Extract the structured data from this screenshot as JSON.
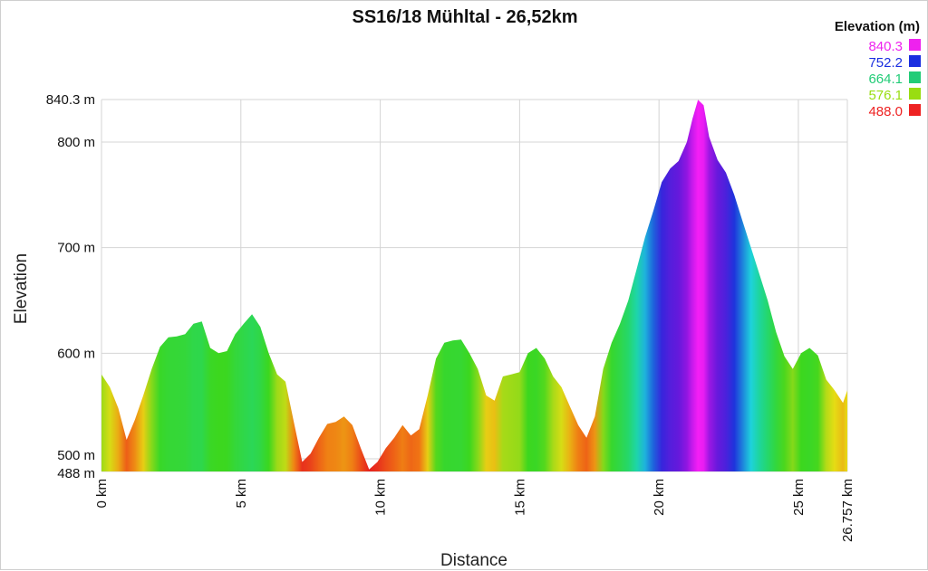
{
  "chart_data": {
    "type": "area",
    "title": "SS16/18 Mühltal - 26,52km",
    "xlabel": "Distance",
    "ylabel": "Elevation",
    "xlim": [
      0,
      26.757
    ],
    "ylim": [
      488,
      840.3
    ],
    "grid": true,
    "x_ticks": [
      {
        "value": 0,
        "label": "0 km"
      },
      {
        "value": 5,
        "label": "5 km"
      },
      {
        "value": 10,
        "label": "10 km"
      },
      {
        "value": 15,
        "label": "15 km"
      },
      {
        "value": 20,
        "label": "20 km"
      },
      {
        "value": 25,
        "label": "25 km"
      },
      {
        "value": 26.757,
        "label": "26.757 km"
      }
    ],
    "y_ticks": [
      {
        "value": 488,
        "label": "488 m"
      },
      {
        "value": 500,
        "label": "500 m"
      },
      {
        "value": 600,
        "label": "600 m"
      },
      {
        "value": 700,
        "label": "700 m"
      },
      {
        "value": 800,
        "label": "800 m"
      },
      {
        "value": 840.3,
        "label": "840.3 m"
      }
    ],
    "legend": {
      "title": "Elevation (m)",
      "position": "top-right",
      "entries": [
        {
          "label": "840.3",
          "color": "#ee22ee"
        },
        {
          "label": "752.2",
          "color": "#1a2ee0"
        },
        {
          "label": "664.1",
          "color": "#22cc77"
        },
        {
          "label": "576.1",
          "color": "#99dd11"
        },
        {
          "label": "488.0",
          "color": "#ee2222"
        }
      ]
    },
    "series": [
      {
        "x": [
          0,
          0.3,
          0.6,
          0.9,
          1.2,
          1.5,
          1.8,
          2.1,
          2.4,
          2.7,
          3.0,
          3.3,
          3.6,
          3.9,
          4.2,
          4.5,
          4.8,
          5.1,
          5.4,
          5.7,
          6.0,
          6.3,
          6.6,
          6.9,
          7.2,
          7.5,
          7.8,
          8.1,
          8.4,
          8.7,
          9.0,
          9.3,
          9.6,
          9.9,
          10.2,
          10.5,
          10.8,
          11.1,
          11.4,
          11.7,
          12.0,
          12.3,
          12.6,
          12.9,
          13.2,
          13.5,
          13.8,
          14.1,
          14.4,
          14.7,
          15.0,
          15.3,
          15.6,
          15.9,
          16.2,
          16.5,
          16.8,
          17.1,
          17.4,
          17.7,
          18.0,
          18.3,
          18.6,
          18.9,
          19.2,
          19.5,
          19.8,
          20.1,
          20.4,
          20.7,
          21.0,
          21.2,
          21.4,
          21.6,
          21.8,
          22.1,
          22.4,
          22.7,
          23.0,
          23.3,
          23.6,
          23.9,
          24.2,
          24.5,
          24.8,
          25.1,
          25.4,
          25.7,
          26.0,
          26.3,
          26.6,
          26.757
        ],
        "y": [
          580,
          568,
          548,
          518,
          537,
          560,
          585,
          606,
          615,
          616,
          618,
          628,
          630,
          605,
          600,
          602,
          618,
          628,
          637,
          625,
          600,
          580,
          573,
          535,
          497,
          505,
          520,
          533,
          535,
          540,
          532,
          510,
          490,
          497,
          510,
          520,
          532,
          522,
          528,
          560,
          595,
          610,
          612,
          613,
          600,
          585,
          560,
          555,
          578,
          580,
          582,
          600,
          605,
          595,
          578,
          568,
          550,
          532,
          520,
          540,
          585,
          610,
          628,
          650,
          680,
          710,
          735,
          762,
          775,
          782,
          800,
          822,
          840,
          835,
          805,
          783,
          771,
          750,
          725,
          700,
          675,
          650,
          620,
          597,
          585,
          600,
          605,
          598,
          575,
          565,
          553,
          565
        ]
      }
    ]
  }
}
